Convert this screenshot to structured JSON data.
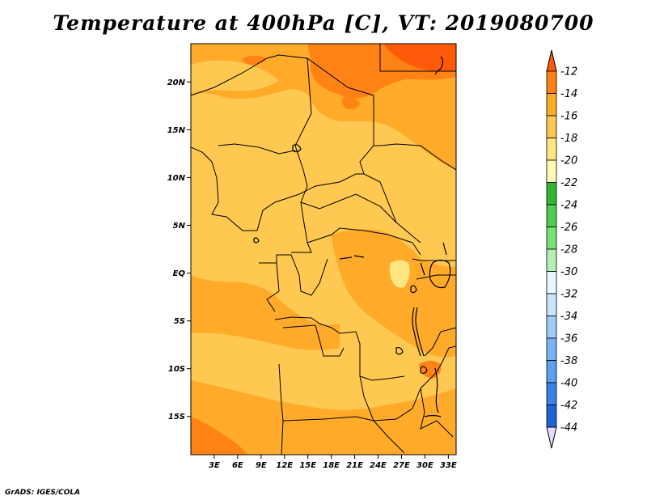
{
  "title": "Temperature at 400hPa [C], VT: 2019080700",
  "credit": "GrADS: IGES/COLA",
  "map": {
    "lon_range": [
      0,
      34
    ],
    "lat_range": [
      -19,
      24
    ],
    "lat_ticks": [
      {
        "value": 20,
        "label": "20N"
      },
      {
        "value": 15,
        "label": "15N"
      },
      {
        "value": 10,
        "label": "10N"
      },
      {
        "value": 5,
        "label": "5N"
      },
      {
        "value": 0,
        "label": "EQ"
      },
      {
        "value": -5,
        "label": "5S"
      },
      {
        "value": -10,
        "label": "10S"
      },
      {
        "value": -15,
        "label": "15S"
      }
    ],
    "lon_ticks": [
      {
        "value": 3,
        "label": "3E"
      },
      {
        "value": 6,
        "label": "6E"
      },
      {
        "value": 9,
        "label": "9E"
      },
      {
        "value": 12,
        "label": "12E"
      },
      {
        "value": 15,
        "label": "15E"
      },
      {
        "value": 18,
        "label": "18E"
      },
      {
        "value": 21,
        "label": "21E"
      },
      {
        "value": 24,
        "label": "24E"
      },
      {
        "value": 27,
        "label": "27E"
      },
      {
        "value": 30,
        "label": "30E"
      },
      {
        "value": 33,
        "label": "33E"
      }
    ]
  },
  "colorbar": {
    "colors": [
      "#0a0a78",
      "#1e3cb4",
      "#1e64d2",
      "#3c82e6",
      "#5a9ff0",
      "#78b4f5",
      "#a0cdf8",
      "#c8e6fa",
      "#e6f7ff",
      "#b4f0b4",
      "#78e178",
      "#50cd50",
      "#32b432",
      "#fffab4",
      "#ffe682",
      "#ffc850",
      "#ffaa28",
      "#ff8214",
      "#ff5a0a",
      "#e6dcff"
    ],
    "top_color": "#ff5a0a",
    "bottom_color": "#e6dcff",
    "labels": [
      "-12",
      "-14",
      "-16",
      "-18",
      "-20",
      "-22",
      "-24",
      "-26",
      "-28",
      "-30",
      "-32",
      "-34",
      "-36",
      "-38",
      "-40",
      "-42",
      "-44"
    ]
  }
}
